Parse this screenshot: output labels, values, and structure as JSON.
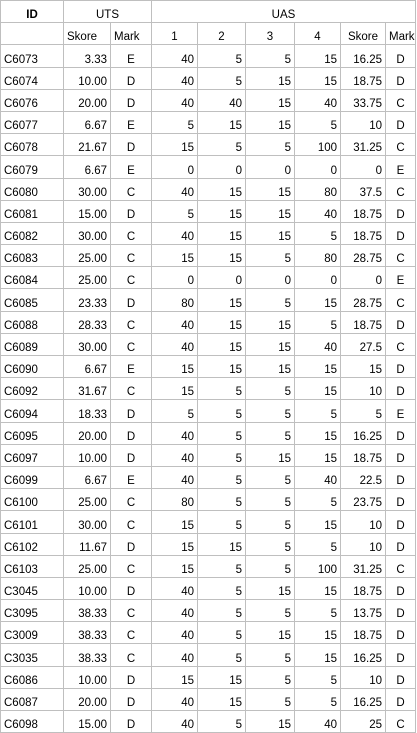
{
  "header": {
    "id_label": "ID",
    "uts_label": "UTS",
    "uas_label": "UAS",
    "uts_cols": [
      "Skore",
      "Mark"
    ],
    "uas_cols": [
      "1",
      "2",
      "3",
      "4",
      "Skore",
      "Mark"
    ]
  },
  "rows": [
    [
      "C6073",
      "3.33",
      "E",
      "40",
      "5",
      "5",
      "15",
      "16.25",
      "D"
    ],
    [
      "C6074",
      "10.00",
      "D",
      "40",
      "5",
      "15",
      "15",
      "18.75",
      "D"
    ],
    [
      "C6076",
      "20.00",
      "D",
      "40",
      "40",
      "15",
      "40",
      "33.75",
      "C"
    ],
    [
      "C6077",
      "6.67",
      "E",
      "5",
      "15",
      "15",
      "5",
      "10",
      "D"
    ],
    [
      "C6078",
      "21.67",
      "D",
      "15",
      "5",
      "5",
      "100",
      "31.25",
      "C"
    ],
    [
      "C6079",
      "6.67",
      "E",
      "0",
      "0",
      "0",
      "0",
      "0",
      "E"
    ],
    [
      "C6080",
      "30.00",
      "C",
      "40",
      "15",
      "15",
      "80",
      "37.5",
      "C"
    ],
    [
      "C6081",
      "15.00",
      "D",
      "5",
      "15",
      "15",
      "40",
      "18.75",
      "D"
    ],
    [
      "C6082",
      "30.00",
      "C",
      "40",
      "15",
      "15",
      "5",
      "18.75",
      "D"
    ],
    [
      "C6083",
      "25.00",
      "C",
      "15",
      "15",
      "5",
      "80",
      "28.75",
      "C"
    ],
    [
      "C6084",
      "25.00",
      "C",
      "0",
      "0",
      "0",
      "0",
      "0",
      "E"
    ],
    [
      "C6085",
      "23.33",
      "D",
      "80",
      "15",
      "5",
      "15",
      "28.75",
      "C"
    ],
    [
      "C6088",
      "28.33",
      "C",
      "40",
      "15",
      "15",
      "5",
      "18.75",
      "D"
    ],
    [
      "C6089",
      "30.00",
      "C",
      "40",
      "15",
      "15",
      "40",
      "27.5",
      "C"
    ],
    [
      "C6090",
      "6.67",
      "E",
      "15",
      "15",
      "15",
      "15",
      "15",
      "D"
    ],
    [
      "C6092",
      "31.67",
      "C",
      "15",
      "5",
      "5",
      "15",
      "10",
      "D"
    ],
    [
      "C6094",
      "18.33",
      "D",
      "5",
      "5",
      "5",
      "5",
      "5",
      "E"
    ],
    [
      "C6095",
      "20.00",
      "D",
      "40",
      "5",
      "5",
      "15",
      "16.25",
      "D"
    ],
    [
      "C6097",
      "10.00",
      "D",
      "40",
      "5",
      "15",
      "15",
      "18.75",
      "D"
    ],
    [
      "C6099",
      "6.67",
      "E",
      "40",
      "5",
      "5",
      "40",
      "22.5",
      "D"
    ],
    [
      "C6100",
      "25.00",
      "C",
      "80",
      "5",
      "5",
      "5",
      "23.75",
      "D"
    ],
    [
      "C6101",
      "30.00",
      "C",
      "15",
      "5",
      "5",
      "15",
      "10",
      "D"
    ],
    [
      "C6102",
      "11.67",
      "D",
      "15",
      "15",
      "5",
      "5",
      "10",
      "D"
    ],
    [
      "C6103",
      "25.00",
      "C",
      "15",
      "5",
      "5",
      "100",
      "31.25",
      "C"
    ],
    [
      "C3045",
      "10.00",
      "D",
      "40",
      "5",
      "15",
      "15",
      "18.75",
      "D"
    ],
    [
      "C3095",
      "38.33",
      "C",
      "40",
      "5",
      "5",
      "5",
      "13.75",
      "D"
    ],
    [
      "C3009",
      "38.33",
      "C",
      "40",
      "5",
      "15",
      "15",
      "18.75",
      "D"
    ],
    [
      "C3035",
      "38.33",
      "C",
      "40",
      "5",
      "5",
      "15",
      "16.25",
      "D"
    ],
    [
      "C6086",
      "10.00",
      "D",
      "15",
      "15",
      "5",
      "5",
      "10",
      "D"
    ],
    [
      "C6087",
      "20.00",
      "D",
      "40",
      "15",
      "5",
      "5",
      "16.25",
      "D"
    ],
    [
      "C6098",
      "15.00",
      "D",
      "40",
      "5",
      "15",
      "40",
      "25",
      "C"
    ]
  ]
}
